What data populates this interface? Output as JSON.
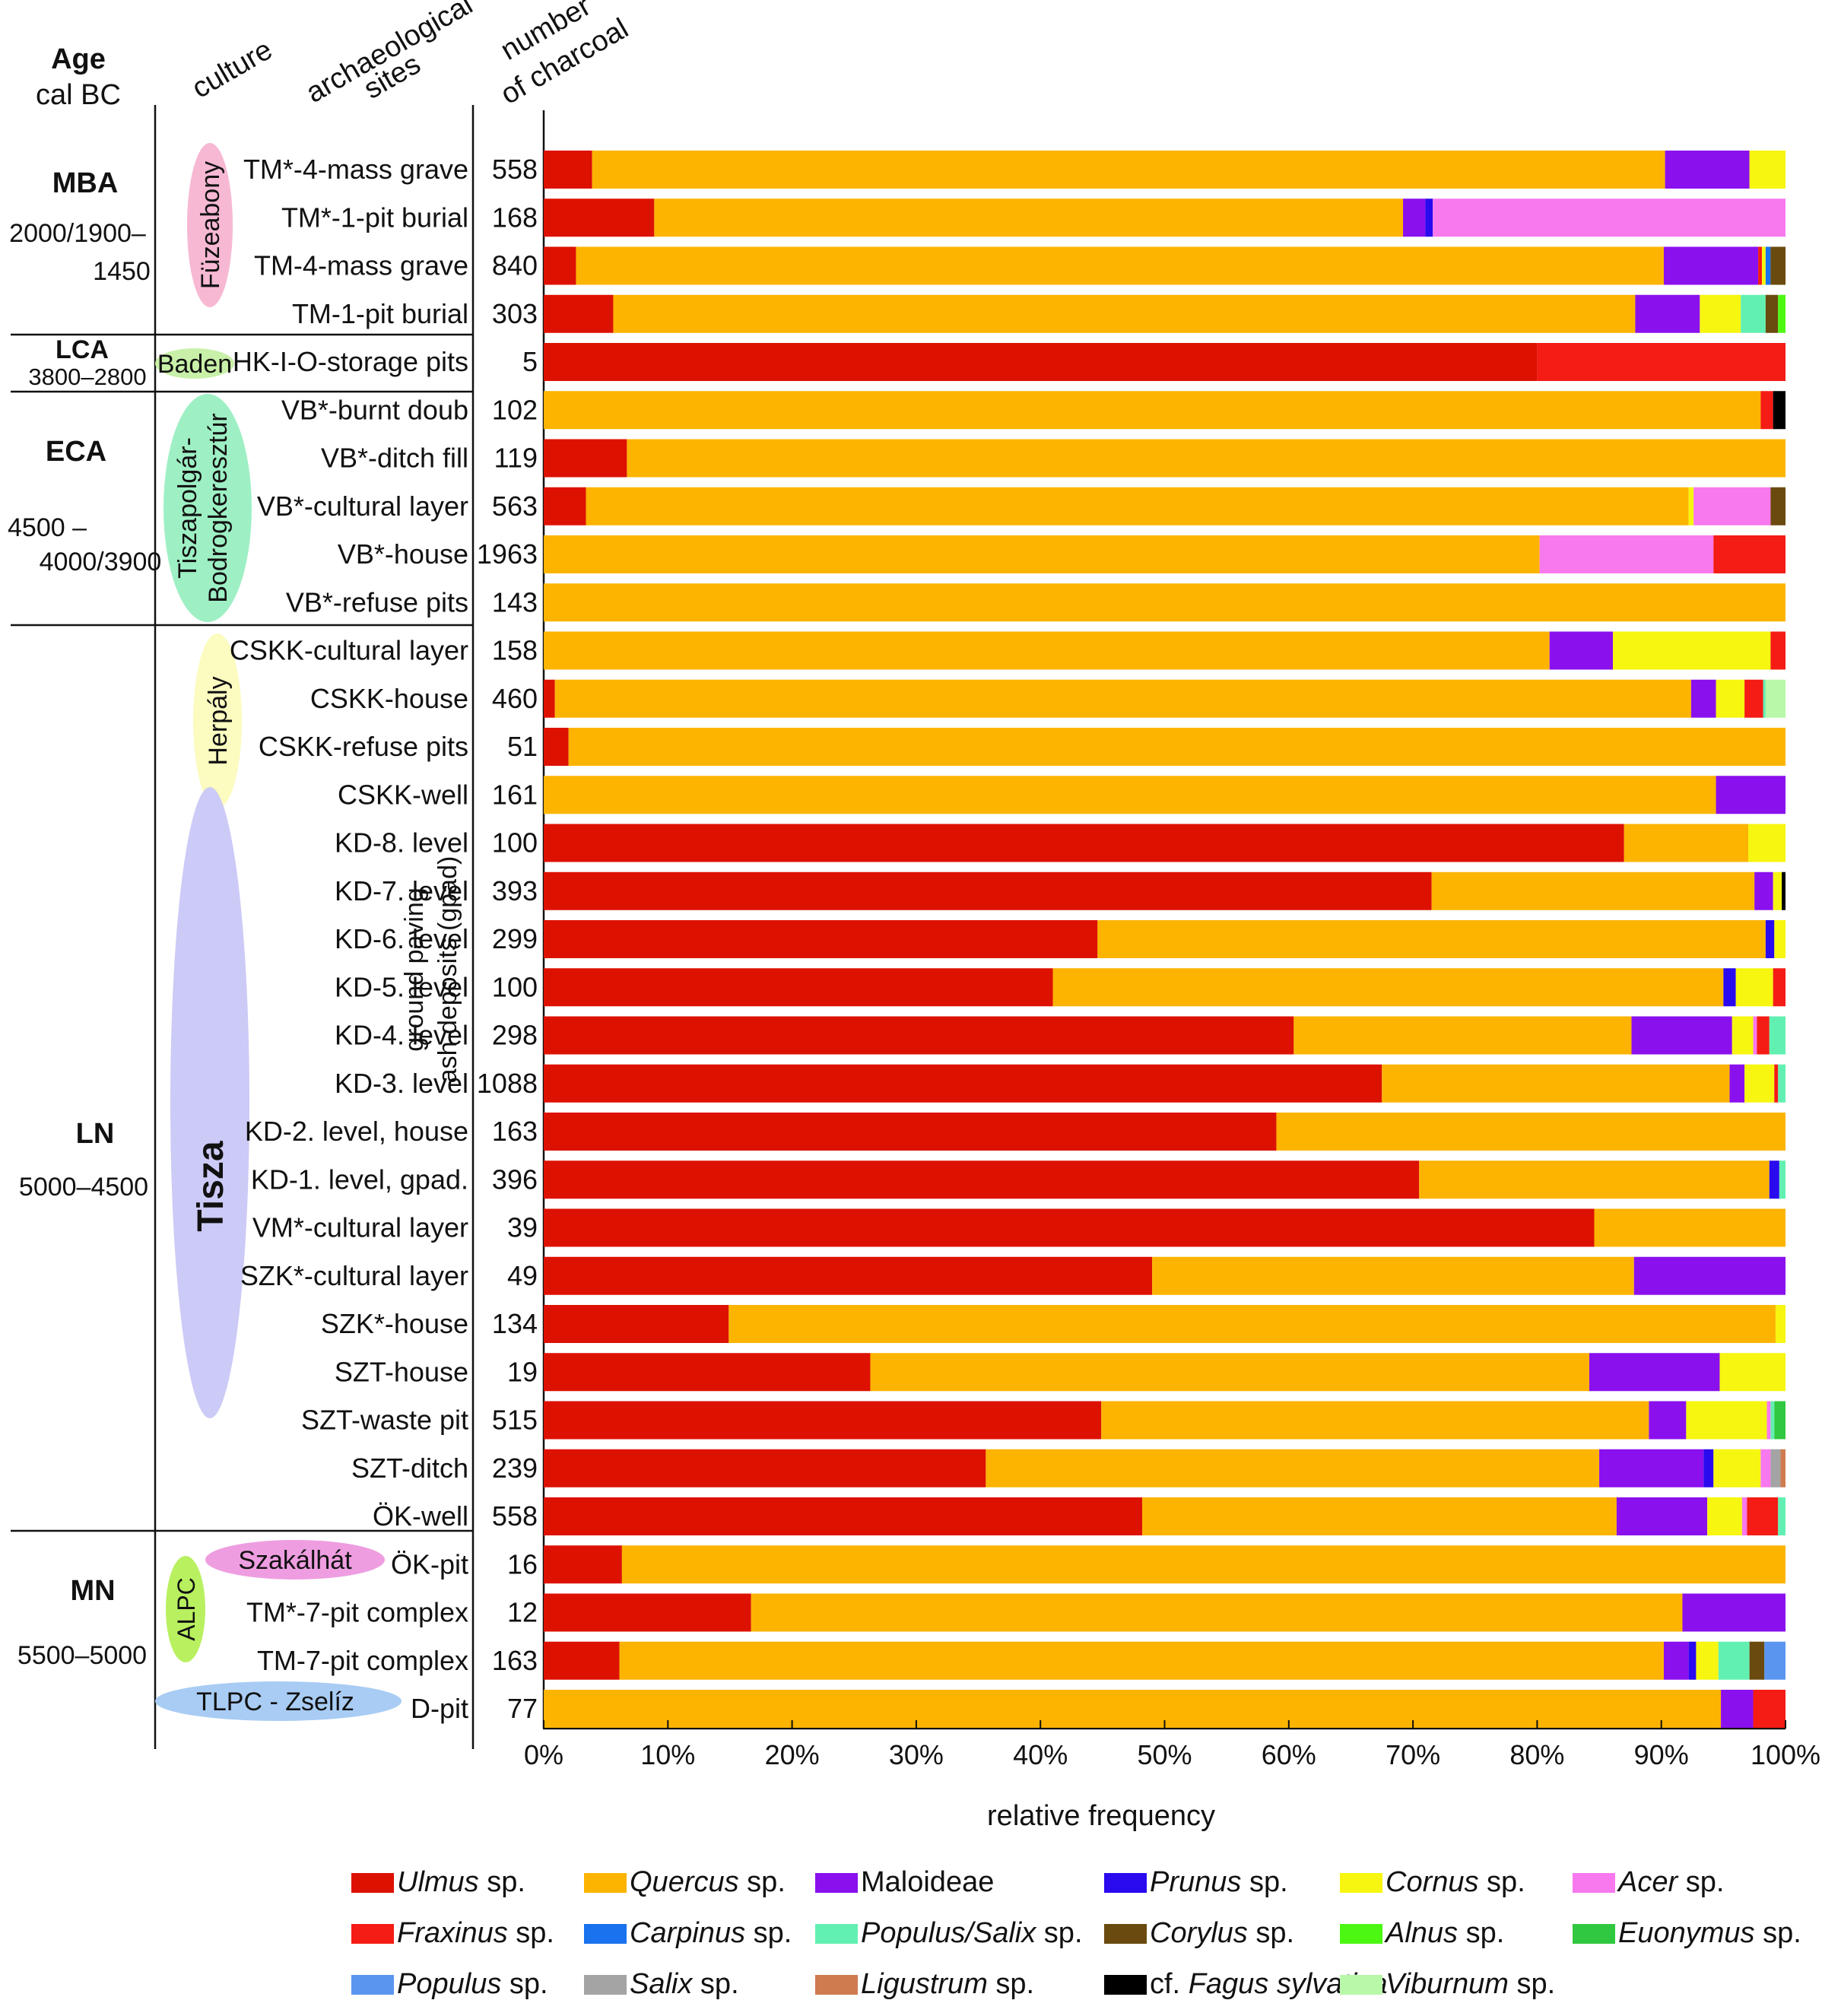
{
  "header": {
    "age": "Age",
    "age_unit": "cal BC",
    "culture": "culture",
    "sites_line1": "archaeological",
    "sites_line2": "sites",
    "count_line1": "number",
    "count_line2": "of charcoal"
  },
  "periods": [
    {
      "name": "MBA",
      "dates": [
        "2000/1900–",
        "1450"
      ]
    },
    {
      "name": "LCA",
      "dates": [
        "3800–2800"
      ]
    },
    {
      "name": "ECA",
      "dates": [
        "4500 –",
        "4000/3900"
      ]
    },
    {
      "name": "LN",
      "dates": [
        "5000–4500"
      ]
    },
    {
      "name": "MN",
      "dates": [
        "5500–5000"
      ]
    }
  ],
  "cultures": [
    {
      "label": [
        "Füzeabony"
      ],
      "color": "#f7b8d4"
    },
    {
      "label": [
        "Baden"
      ],
      "color": "#c8f0a8"
    },
    {
      "label": [
        "Tiszapolgár-",
        "Bodrogkeresztúr"
      ],
      "color": "#9ef0c4"
    },
    {
      "label": [
        "Herpály"
      ],
      "color": "#fcfbc0"
    },
    {
      "label": [
        "Tisza"
      ],
      "color": "#cccaf6"
    },
    {
      "label": [
        "Szakálhát"
      ],
      "color": "#ee9ee0"
    },
    {
      "label": [
        "ALPC"
      ],
      "color": "#b8f060"
    },
    {
      "label": [
        "TLPC - Zselíz"
      ],
      "color": "#a8ccf4"
    }
  ],
  "gpad_label": [
    "ground paving",
    "ash deposits (gpad)"
  ],
  "species": [
    {
      "name": "Ulmus",
      "suffix": " sp.",
      "italic": true,
      "color": "#dd1100"
    },
    {
      "name": "Quercus",
      "suffix": " sp.",
      "italic": true,
      "color": "#fcb400"
    },
    {
      "name": "Maloideae",
      "suffix": "",
      "italic": false,
      "color": "#8a10ee"
    },
    {
      "name": "Prunus",
      "suffix": " sp.",
      "italic": true,
      "color": "#2a0aee"
    },
    {
      "name": "Cornus",
      "suffix": " sp.",
      "italic": true,
      "color": "#f6f610"
    },
    {
      "name": "Acer",
      "suffix": " sp.",
      "italic": true,
      "color": "#f878ee"
    },
    {
      "name": "Fraxinus",
      "suffix": " sp.",
      "italic": true,
      "color": "#f41c14"
    },
    {
      "name": "Carpinus",
      "suffix": " sp.",
      "italic": true,
      "color": "#1a72ee"
    },
    {
      "name": "Populus/Salix",
      "suffix": " sp.",
      "italic": true,
      "color": "#62f0b2"
    },
    {
      "name": "Corylus",
      "suffix": " sp.",
      "italic": true,
      "color": "#6a4a0e"
    },
    {
      "name": "Alnus",
      "suffix": " sp.",
      "italic": true,
      "color": "#4cf812"
    },
    {
      "name": "Euonymus",
      "suffix": " sp.",
      "italic": true,
      "color": "#30c840"
    },
    {
      "name": "Populus",
      "suffix": " sp.",
      "italic": true,
      "color": "#5a96f0"
    },
    {
      "name": "Salix",
      "suffix": " sp.",
      "italic": true,
      "color": "#a4a4a4"
    },
    {
      "name": "Ligustrum",
      "suffix": " sp.",
      "italic": true,
      "color": "#d07a50"
    },
    {
      "name": "cf. Fagus sylvatica",
      "prefix": "cf. ",
      "italic_part": "Fagus sylvatica",
      "suffix": "",
      "italic": true,
      "color": "#000000"
    },
    {
      "name": "Viburnum",
      "suffix": " sp.",
      "italic": true,
      "color": "#b8f8a8"
    }
  ],
  "chart_data": {
    "type": "bar",
    "orientation": "horizontal",
    "stacked": true,
    "xlabel": "relative frequency",
    "xlim": [
      0,
      100
    ],
    "xticks": [
      "0%",
      "10%",
      "20%",
      "30%",
      "40%",
      "50%",
      "60%",
      "70%",
      "80%",
      "90%",
      "100%"
    ],
    "grid": false,
    "legend_position": "bottom",
    "rows": [
      {
        "site": "TM*-4-mass grave",
        "count": "558",
        "segments": [
          [
            0,
            3.9
          ],
          [
            1,
            86.4
          ],
          [
            2,
            6.8
          ],
          [
            4,
            2.9
          ]
        ]
      },
      {
        "site": "TM*-1-pit burial",
        "count": "168",
        "segments": [
          [
            0,
            8.9
          ],
          [
            1,
            60.3
          ],
          [
            2,
            1.8
          ],
          [
            3,
            0.6
          ],
          [
            5,
            28.4
          ]
        ]
      },
      {
        "site": "TM-4-mass grave",
        "count": "840",
        "segments": [
          [
            0,
            2.6
          ],
          [
            1,
            87.6
          ],
          [
            2,
            7.6
          ],
          [
            6,
            0.3
          ],
          [
            4,
            0.3
          ],
          [
            7,
            0.4
          ],
          [
            9,
            1.2
          ]
        ]
      },
      {
        "site": "TM-1-pit burial",
        "count": "303",
        "segments": [
          [
            0,
            5.6
          ],
          [
            1,
            82.3
          ],
          [
            2,
            5.2
          ],
          [
            4,
            3.3
          ],
          [
            8,
            2.0
          ],
          [
            9,
            1.0
          ],
          [
            10,
            0.6
          ]
        ]
      },
      {
        "site": "HK-I-O-storage pits",
        "count": "5",
        "segments": [
          [
            0,
            80.0
          ],
          [
            6,
            20.0
          ]
        ]
      },
      {
        "site": "VB*-burnt doub",
        "count": "102",
        "segments": [
          [
            1,
            98.0
          ],
          [
            6,
            1.0
          ],
          [
            15,
            1.0
          ]
        ]
      },
      {
        "site": "VB*-ditch fill",
        "count": "119",
        "segments": [
          [
            0,
            6.7
          ],
          [
            1,
            93.3
          ]
        ]
      },
      {
        "site": "VB*-cultural layer",
        "count": "563",
        "segments": [
          [
            0,
            3.4
          ],
          [
            1,
            88.8
          ],
          [
            4,
            0.4
          ],
          [
            5,
            6.2
          ],
          [
            9,
            1.2
          ]
        ]
      },
      {
        "site": "VB*-house",
        "count": "1963",
        "segments": [
          [
            1,
            80.2
          ],
          [
            5,
            14.0
          ],
          [
            6,
            5.8
          ]
        ]
      },
      {
        "site": "VB*-refuse pits",
        "count": "143",
        "segments": [
          [
            1,
            100
          ]
        ]
      },
      {
        "site": "CSKK-cultural layer",
        "count": "158",
        "segments": [
          [
            1,
            81.0
          ],
          [
            2,
            5.1
          ],
          [
            4,
            12.7
          ],
          [
            6,
            1.2
          ]
        ]
      },
      {
        "site": "CSKK-house",
        "count": "460",
        "segments": [
          [
            0,
            0.9
          ],
          [
            1,
            91.5
          ],
          [
            2,
            2.0
          ],
          [
            4,
            2.3
          ],
          [
            6,
            1.5
          ],
          [
            8,
            0.2
          ],
          [
            16,
            1.6
          ]
        ]
      },
      {
        "site": "CSKK-refuse pits",
        "count": "51",
        "segments": [
          [
            0,
            2.0
          ],
          [
            1,
            98.0
          ]
        ]
      },
      {
        "site": "CSKK-well",
        "count": "161",
        "segments": [
          [
            1,
            94.4
          ],
          [
            2,
            5.6
          ]
        ]
      },
      {
        "site": "KD-8. level",
        "count": "100",
        "segments": [
          [
            0,
            87.0
          ],
          [
            1,
            10.0
          ],
          [
            4,
            3.0
          ]
        ]
      },
      {
        "site": "KD-7. level",
        "count": "393",
        "segments": [
          [
            0,
            71.5
          ],
          [
            1,
            26.0
          ],
          [
            2,
            1.5
          ],
          [
            4,
            0.7
          ],
          [
            15,
            0.3
          ]
        ]
      },
      {
        "site": "KD-6. level",
        "count": "299",
        "segments": [
          [
            0,
            44.6
          ],
          [
            1,
            53.8
          ],
          [
            3,
            0.7
          ],
          [
            4,
            0.9
          ]
        ]
      },
      {
        "site": "KD-5. level",
        "count": "100",
        "segments": [
          [
            0,
            41.0
          ],
          [
            1,
            54.0
          ],
          [
            3,
            1.0
          ],
          [
            4,
            3.0
          ],
          [
            6,
            1.0
          ]
        ]
      },
      {
        "site": "KD-4. level",
        "count": "298",
        "segments": [
          [
            0,
            60.4
          ],
          [
            1,
            27.2
          ],
          [
            2,
            8.1
          ],
          [
            4,
            1.7
          ],
          [
            5,
            0.3
          ],
          [
            6,
            1.0
          ],
          [
            8,
            1.3
          ]
        ]
      },
      {
        "site": "KD-3. level",
        "count": "1088",
        "segments": [
          [
            0,
            67.5
          ],
          [
            1,
            28.0
          ],
          [
            2,
            1.2
          ],
          [
            4,
            2.4
          ],
          [
            6,
            0.3
          ],
          [
            8,
            0.6
          ]
        ]
      },
      {
        "site": "KD-2. level, house",
        "count": "163",
        "segments": [
          [
            0,
            59.0
          ],
          [
            1,
            41.0
          ]
        ]
      },
      {
        "site": "KD-1. level, gpad.",
        "count": "396",
        "segments": [
          [
            0,
            70.5
          ],
          [
            1,
            28.2
          ],
          [
            3,
            0.8
          ],
          [
            8,
            0.5
          ]
        ]
      },
      {
        "site": "VM*-cultural layer",
        "count": "39",
        "segments": [
          [
            0,
            84.6
          ],
          [
            1,
            15.4
          ]
        ]
      },
      {
        "site": "SZK*-cultural layer",
        "count": "49",
        "segments": [
          [
            0,
            49.0
          ],
          [
            1,
            38.8
          ],
          [
            2,
            12.2
          ]
        ]
      },
      {
        "site": "SZK*-house",
        "count": "134",
        "segments": [
          [
            0,
            14.9
          ],
          [
            1,
            84.3
          ],
          [
            4,
            0.8
          ]
        ]
      },
      {
        "site": "SZT-house",
        "count": "19",
        "segments": [
          [
            0,
            26.3
          ],
          [
            1,
            57.9
          ],
          [
            2,
            10.5
          ],
          [
            4,
            5.3
          ]
        ]
      },
      {
        "site": "SZT-waste pit",
        "count": "515",
        "segments": [
          [
            0,
            44.9
          ],
          [
            1,
            44.1
          ],
          [
            2,
            3.0
          ],
          [
            4,
            6.5
          ],
          [
            5,
            0.3
          ],
          [
            8,
            0.3
          ],
          [
            11,
            0.9
          ]
        ]
      },
      {
        "site": "SZT-ditch",
        "count": "239",
        "segments": [
          [
            0,
            35.6
          ],
          [
            1,
            49.4
          ],
          [
            2,
            8.4
          ],
          [
            3,
            0.8
          ],
          [
            4,
            3.8
          ],
          [
            5,
            0.8
          ],
          [
            13,
            0.8
          ],
          [
            14,
            0.4
          ]
        ]
      },
      {
        "site": "ÖK-well",
        "count": "558",
        "segments": [
          [
            0,
            48.2
          ],
          [
            1,
            38.2
          ],
          [
            2,
            7.3
          ],
          [
            4,
            2.8
          ],
          [
            5,
            0.4
          ],
          [
            6,
            2.5
          ],
          [
            8,
            0.6
          ]
        ]
      },
      {
        "site": "ÖK-pit",
        "count": "16",
        "segments": [
          [
            0,
            6.3
          ],
          [
            1,
            93.7
          ]
        ]
      },
      {
        "site": "TM*-7-pit complex",
        "count": "12",
        "segments": [
          [
            0,
            16.7
          ],
          [
            1,
            75.0
          ],
          [
            2,
            8.3
          ]
        ]
      },
      {
        "site": "TM-7-pit complex",
        "count": "163",
        "segments": [
          [
            0,
            6.1
          ],
          [
            1,
            84.1
          ],
          [
            2,
            2.0
          ],
          [
            3,
            0.6
          ],
          [
            4,
            1.8
          ],
          [
            8,
            2.5
          ],
          [
            9,
            1.2
          ],
          [
            12,
            1.7
          ]
        ]
      },
      {
        "site": "D-pit",
        "count": "77",
        "segments": [
          [
            1,
            94.8
          ],
          [
            2,
            2.6
          ],
          [
            6,
            2.6
          ]
        ]
      }
    ]
  }
}
